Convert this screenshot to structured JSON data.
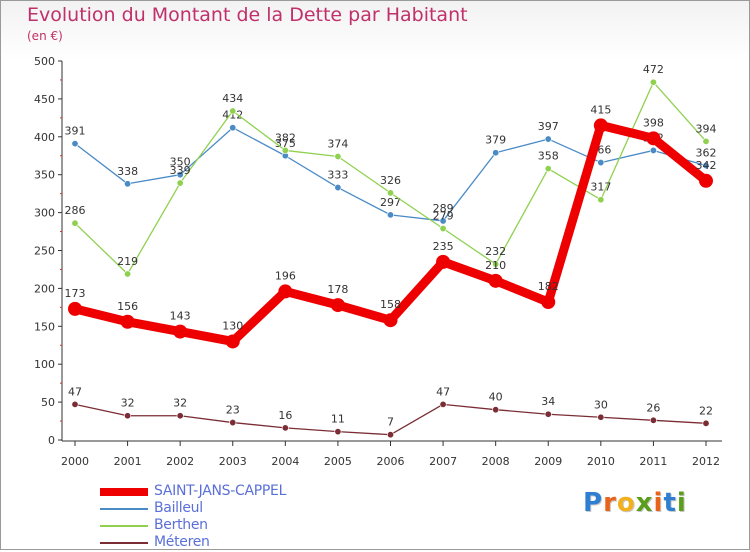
{
  "header": {
    "title": "Evolution du Montant de la Dette par Habitant",
    "subtitle": "(en €)"
  },
  "logo": {
    "letters": [
      "P",
      "r",
      "o",
      "x",
      "i",
      "t",
      "i"
    ],
    "colors": [
      "#2e7fd1",
      "#e8641b",
      "#f2b01e",
      "#5a9e1c",
      "#e8641b",
      "#2e7fd1",
      "#5a9e1c"
    ]
  },
  "chart_data": {
    "type": "line",
    "title": "Evolution du Montant de la Dette par Habitant",
    "subtitle": "(en €)",
    "xlabel": "",
    "ylabel": "",
    "ylim": [
      0,
      500
    ],
    "yticks": [
      0,
      50,
      100,
      150,
      200,
      250,
      300,
      350,
      400,
      450,
      500
    ],
    "grid": false,
    "legend_position": "bottom",
    "x": [
      "2000",
      "2001",
      "2002",
      "2003",
      "2004",
      "2005",
      "2006",
      "2007",
      "2008",
      "2009",
      "2010",
      "2011",
      "2012"
    ],
    "series": [
      {
        "name": "Bailleul",
        "color": "#4a8bc6",
        "values": [
          391,
          338,
          350,
          412,
          375,
          333,
          297,
          289,
          379,
          397,
          366,
          382,
          362
        ]
      },
      {
        "name": "Berthen",
        "color": "#8fd14f",
        "values": [
          286,
          219,
          339,
          434,
          382,
          374,
          326,
          279,
          232,
          358,
          317,
          472,
          394
        ]
      },
      {
        "name": "Méteren",
        "color": "#7b2d35",
        "values": [
          47,
          32,
          32,
          23,
          16,
          11,
          7,
          47,
          40,
          34,
          30,
          26,
          22
        ]
      },
      {
        "name": "SAINT-JANS-CAPPEL",
        "color": "#ee0000",
        "values": [
          173,
          156,
          143,
          130,
          196,
          178,
          158,
          235,
          210,
          182,
          415,
          398,
          342
        ]
      }
    ]
  },
  "legend": [
    {
      "name": "SAINT-JANS-CAPPEL",
      "color": "#ee0000",
      "thick": true
    },
    {
      "name": "Bailleul",
      "color": "#4a8bc6",
      "thick": false
    },
    {
      "name": "Berthen",
      "color": "#8fd14f",
      "thick": false
    },
    {
      "name": "Méteren",
      "color": "#7b2d35",
      "thick": false
    }
  ]
}
